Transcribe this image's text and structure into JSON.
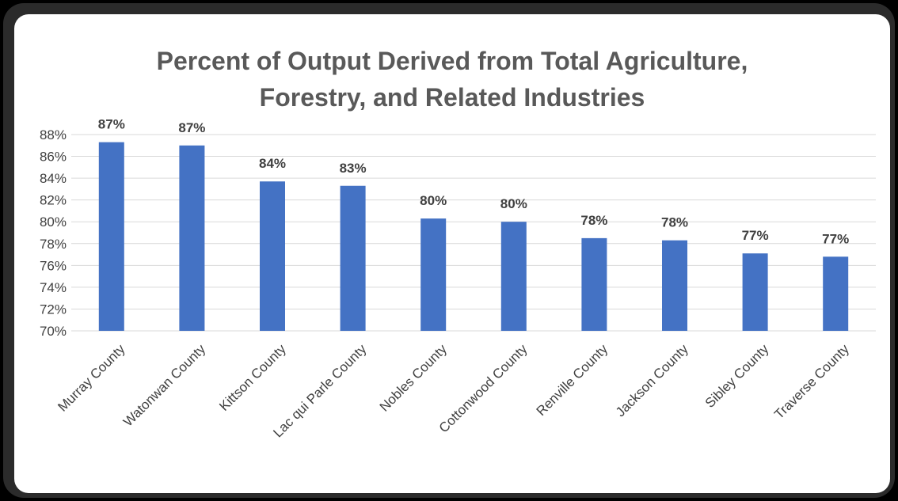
{
  "chart_data": {
    "type": "bar",
    "title": "Percent of Output Derived from Total Agriculture, Forestry, and Related Industries",
    "title_lines": [
      "Percent of Output Derived from Total Agriculture,",
      "Forestry, and Related Industries"
    ],
    "categories": [
      "Murray County",
      "Watonwan County",
      "Kittson County",
      "Lac qui Parle County",
      "Nobles County",
      "Cottonwood County",
      "Renville County",
      "Jackson County",
      "Sibley County",
      "Traverse County"
    ],
    "values": [
      87.3,
      87.0,
      83.7,
      83.3,
      80.3,
      80.0,
      78.5,
      78.3,
      77.1,
      76.8
    ],
    "data_labels": [
      "87%",
      "87%",
      "84%",
      "83%",
      "80%",
      "80%",
      "78%",
      "78%",
      "77%",
      "77%"
    ],
    "y_ticks": [
      "70%",
      "72%",
      "74%",
      "76%",
      "78%",
      "80%",
      "82%",
      "84%",
      "86%",
      "88%"
    ],
    "ylim": [
      70,
      88
    ],
    "xlabel": "",
    "ylabel": "",
    "grid": true,
    "legend": "none",
    "colors": {
      "bar": "#4472C4",
      "grid": "#d9d9d9",
      "text": "#404040",
      "title": "#595959"
    }
  }
}
